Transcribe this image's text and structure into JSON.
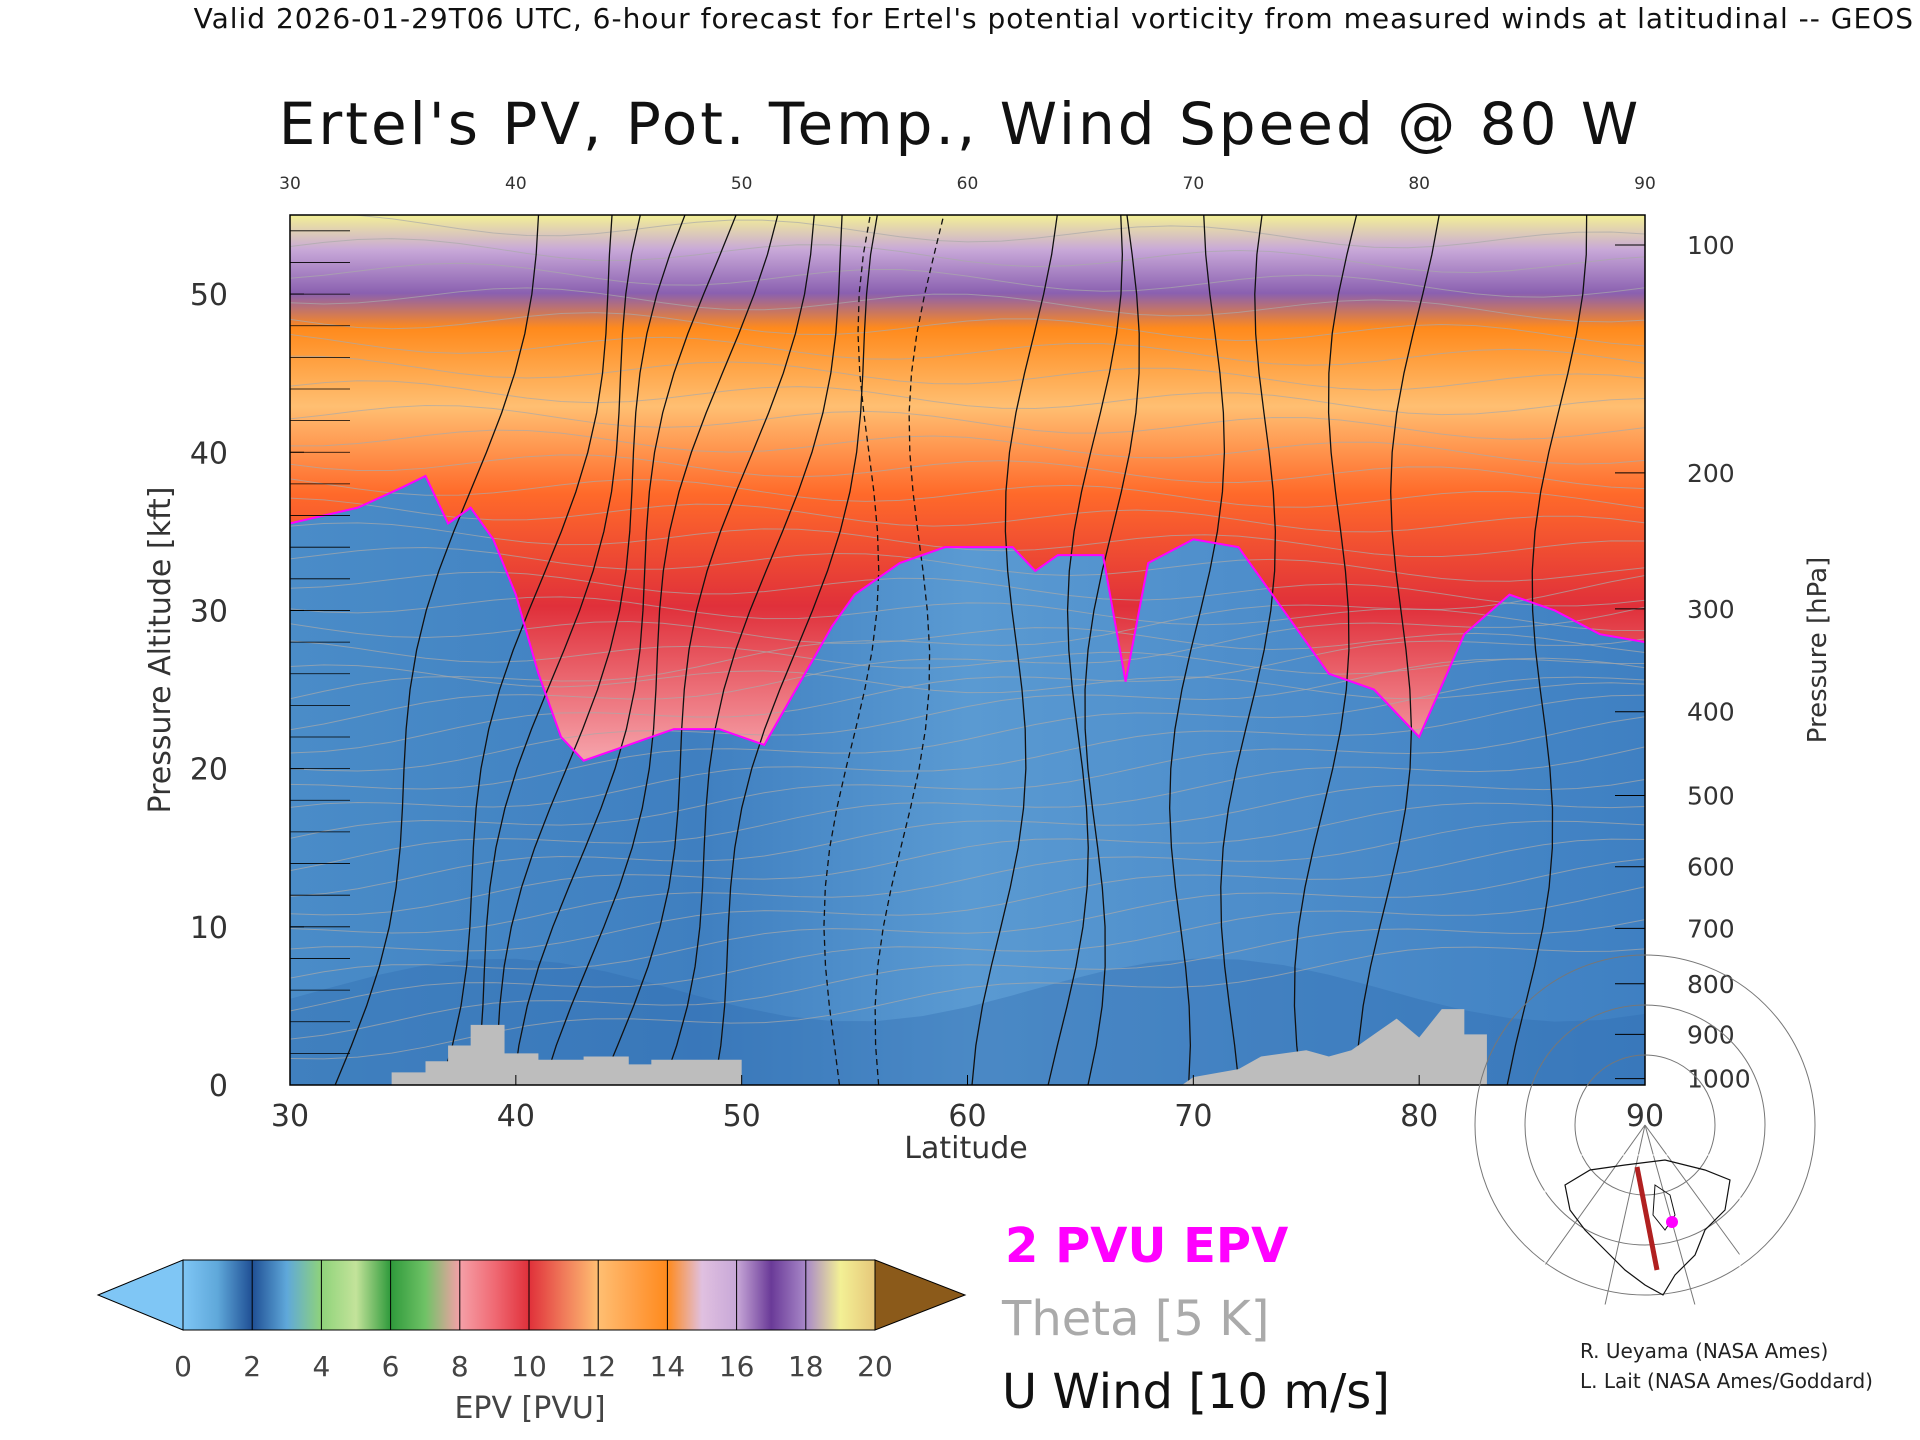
{
  "header": {
    "valid_line": "Valid 2026-01-29T06 UTC, 6-hour forecast for Ertel's potential vorticity from measured winds at latitudinal -- GEOS"
  },
  "chart_data": {
    "type": "heatmap",
    "title": "Ertel's PV, Pot. Temp., Wind Speed @ 80 W",
    "xlabel": "Latitude",
    "ylabel_left": "Pressure Altitude [kft]",
    "ylabel_right": "Pressure [hPa]",
    "x_range": [
      30,
      90
    ],
    "y_range_kft": [
      0,
      55
    ],
    "x_ticks": [
      30,
      40,
      50,
      60,
      70,
      80,
      90
    ],
    "y_ticks_kft": [
      0,
      10,
      20,
      30,
      40,
      50
    ],
    "pressure_ticks": [
      {
        "p": 100,
        "kft": 53.1
      },
      {
        "p": 200,
        "kft": 38.7
      },
      {
        "p": 300,
        "kft": 30.1
      },
      {
        "p": 400,
        "kft": 23.6
      },
      {
        "p": 500,
        "kft": 18.3
      },
      {
        "p": 600,
        "kft": 13.8
      },
      {
        "p": 700,
        "kft": 9.9
      },
      {
        "p": 800,
        "kft": 6.4
      },
      {
        "p": 900,
        "kft": 3.2
      },
      {
        "p": 1000,
        "kft": 0.4
      }
    ],
    "tropopause_2pvu_kft": [
      [
        30,
        35.5
      ],
      [
        33,
        36.5
      ],
      [
        35,
        37.8
      ],
      [
        36,
        38.5
      ],
      [
        37,
        35.5
      ],
      [
        38,
        36.5
      ],
      [
        39,
        34.5
      ],
      [
        40,
        31
      ],
      [
        41,
        26
      ],
      [
        42,
        22
      ],
      [
        43,
        20.5
      ],
      [
        45,
        21.5
      ],
      [
        47,
        22.5
      ],
      [
        49,
        22.5
      ],
      [
        51,
        21.5
      ],
      [
        52,
        24
      ],
      [
        53,
        26.5
      ],
      [
        54,
        29
      ],
      [
        55,
        31
      ],
      [
        57,
        33
      ],
      [
        59,
        34
      ],
      [
        62,
        34
      ],
      [
        63,
        32.5
      ],
      [
        64,
        33.5
      ],
      [
        66,
        33.5
      ],
      [
        67,
        25.5
      ],
      [
        68,
        33
      ],
      [
        70,
        34.5
      ],
      [
        72,
        34
      ],
      [
        74,
        30
      ],
      [
        76,
        26
      ],
      [
        78,
        25
      ],
      [
        80,
        22
      ],
      [
        82,
        28.5
      ],
      [
        84,
        31
      ],
      [
        86,
        30
      ],
      [
        88,
        28.5
      ],
      [
        90,
        28
      ]
    ],
    "surface_kft": [
      [
        30,
        0
      ],
      [
        34.5,
        0
      ],
      [
        34.5,
        0.8
      ],
      [
        36,
        0.8
      ],
      [
        36,
        1.5
      ],
      [
        37,
        1.5
      ],
      [
        37,
        2.5
      ],
      [
        38,
        2.5
      ],
      [
        38,
        3.8
      ],
      [
        39.5,
        3.8
      ],
      [
        39.5,
        2
      ],
      [
        41,
        2
      ],
      [
        41,
        1.6
      ],
      [
        43,
        1.6
      ],
      [
        43,
        1.8
      ],
      [
        45,
        1.8
      ],
      [
        45,
        1.3
      ],
      [
        46,
        1.3
      ],
      [
        46,
        1.6
      ],
      [
        50,
        1.6
      ],
      [
        50,
        0
      ],
      [
        69.5,
        0
      ],
      [
        70,
        0.5
      ],
      [
        72,
        1
      ],
      [
        73,
        1.8
      ],
      [
        75,
        2.2
      ],
      [
        76,
        1.8
      ],
      [
        77,
        2.2
      ],
      [
        78,
        3.2
      ],
      [
        79,
        4.2
      ],
      [
        80,
        3
      ],
      [
        81,
        4.8
      ],
      [
        82,
        4.8
      ],
      [
        82,
        3.2
      ],
      [
        83,
        3.2
      ],
      [
        83,
        0
      ],
      [
        90,
        0
      ]
    ],
    "colorbar": {
      "label": "EPV [PVU]",
      "ticks": [
        "0",
        "2",
        "4",
        "6",
        "8",
        "10",
        "12",
        "14",
        "16",
        "18",
        "20"
      ],
      "colors": [
        "#1f4f94",
        "#5fa8da",
        "#8fd37a",
        "#2f9a3b",
        "#f5a0a8",
        "#e0303a",
        "#ffbf72",
        "#ff8a1c",
        "#c8a8d8",
        "#6a3a98",
        "#f3f095"
      ],
      "under_color": "#7fc6f5",
      "over_color": "#8b5a1a"
    },
    "legend": {
      "epv_line": "2 PVU EPV",
      "theta": "Theta [5 K]",
      "wind": "U Wind [10 m/s]"
    },
    "epv_color": "#ff00ff",
    "theta_color": "#aaaaaa"
  },
  "credits": {
    "line1": "R. Ueyama (NASA Ames)",
    "line2": "L. Lait (NASA Ames/Goddard)"
  }
}
